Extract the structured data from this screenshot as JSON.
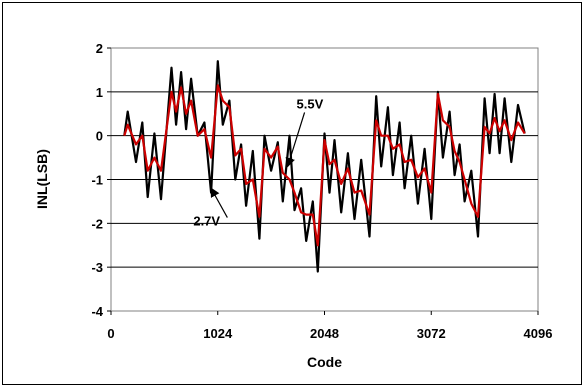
{
  "chart_data": {
    "type": "line",
    "xlabel": "Code",
    "ylabel": "INL(LSB)",
    "xlim": [
      0,
      4096
    ],
    "ylim": [
      -4,
      2
    ],
    "xticks": [
      0,
      1024,
      2048,
      3072,
      4096
    ],
    "yticks": [
      -4,
      -3,
      -2,
      -1,
      0,
      1,
      2
    ],
    "grid": "horizontal",
    "annotations": [
      {
        "text": "5.5V",
        "series": "5.5V",
        "point_x": 1695,
        "point_y": -0.7
      },
      {
        "text": "2.7V",
        "series": "2.7V",
        "point_x": 960,
        "point_y": -1.2
      }
    ],
    "series": [
      {
        "name": "2.7V",
        "color": "#000000",
        "points": [
          [
            128,
            0.0
          ],
          [
            160,
            0.55
          ],
          [
            240,
            -0.6
          ],
          [
            300,
            0.3
          ],
          [
            352,
            -1.4
          ],
          [
            416,
            0.05
          ],
          [
            480,
            -1.45
          ],
          [
            580,
            1.55
          ],
          [
            624,
            0.25
          ],
          [
            672,
            1.45
          ],
          [
            720,
            0.15
          ],
          [
            768,
            1.3
          ],
          [
            832,
            0.0
          ],
          [
            896,
            0.3
          ],
          [
            960,
            -1.3
          ],
          [
            1024,
            1.7
          ],
          [
            1072,
            0.25
          ],
          [
            1136,
            0.8
          ],
          [
            1192,
            -1.0
          ],
          [
            1248,
            -0.2
          ],
          [
            1296,
            -1.6
          ],
          [
            1360,
            -0.35
          ],
          [
            1424,
            -2.35
          ],
          [
            1472,
            0.0
          ],
          [
            1536,
            -0.8
          ],
          [
            1600,
            -0.15
          ],
          [
            1648,
            -1.5
          ],
          [
            1712,
            0.0
          ],
          [
            1760,
            -1.7
          ],
          [
            1824,
            -1.2
          ],
          [
            1872,
            -2.4
          ],
          [
            1936,
            -1.5
          ],
          [
            1984,
            -3.1
          ],
          [
            2048,
            0.05
          ],
          [
            2096,
            -1.3
          ],
          [
            2144,
            -0.1
          ],
          [
            2208,
            -1.75
          ],
          [
            2272,
            -0.4
          ],
          [
            2336,
            -1.9
          ],
          [
            2400,
            -0.55
          ],
          [
            2480,
            -2.3
          ],
          [
            2544,
            0.9
          ],
          [
            2592,
            -0.7
          ],
          [
            2656,
            0.65
          ],
          [
            2704,
            -0.9
          ],
          [
            2768,
            0.3
          ],
          [
            2816,
            -1.2
          ],
          [
            2880,
            0.0
          ],
          [
            2944,
            -1.55
          ],
          [
            3008,
            -0.3
          ],
          [
            3072,
            -1.9
          ],
          [
            3136,
            1.0
          ],
          [
            3184,
            -0.5
          ],
          [
            3248,
            0.55
          ],
          [
            3296,
            -0.9
          ],
          [
            3344,
            -0.2
          ],
          [
            3392,
            -1.5
          ],
          [
            3456,
            -0.8
          ],
          [
            3520,
            -2.3
          ],
          [
            3584,
            0.85
          ],
          [
            3632,
            -0.4
          ],
          [
            3680,
            0.95
          ],
          [
            3728,
            -0.4
          ],
          [
            3776,
            0.85
          ],
          [
            3840,
            -0.6
          ],
          [
            3904,
            0.7
          ],
          [
            3968,
            0.05
          ]
        ]
      },
      {
        "name": "5.5V",
        "color": "#cc0000",
        "points": [
          [
            128,
            0.0
          ],
          [
            160,
            0.25
          ],
          [
            240,
            -0.2
          ],
          [
            300,
            0.0
          ],
          [
            352,
            -0.8
          ],
          [
            416,
            -0.5
          ],
          [
            480,
            -0.8
          ],
          [
            580,
            1.0
          ],
          [
            624,
            0.55
          ],
          [
            672,
            1.1
          ],
          [
            720,
            0.5
          ],
          [
            768,
            0.8
          ],
          [
            832,
            0.0
          ],
          [
            896,
            0.15
          ],
          [
            960,
            -0.5
          ],
          [
            1024,
            1.15
          ],
          [
            1072,
            0.8
          ],
          [
            1136,
            0.65
          ],
          [
            1192,
            -0.45
          ],
          [
            1248,
            -0.3
          ],
          [
            1296,
            -1.1
          ],
          [
            1360,
            -1.0
          ],
          [
            1424,
            -1.85
          ],
          [
            1472,
            -0.3
          ],
          [
            1536,
            -0.5
          ],
          [
            1600,
            -0.25
          ],
          [
            1648,
            -0.85
          ],
          [
            1712,
            -1.0
          ],
          [
            1760,
            -1.3
          ],
          [
            1824,
            -1.75
          ],
          [
            1872,
            -1.8
          ],
          [
            1936,
            -1.8
          ],
          [
            1984,
            -2.5
          ],
          [
            2048,
            -0.1
          ],
          [
            2096,
            -0.65
          ],
          [
            2144,
            -0.55
          ],
          [
            2208,
            -1.1
          ],
          [
            2272,
            -0.75
          ],
          [
            2336,
            -1.3
          ],
          [
            2400,
            -1.25
          ],
          [
            2480,
            -1.8
          ],
          [
            2544,
            0.35
          ],
          [
            2592,
            0.0
          ],
          [
            2656,
            0.0
          ],
          [
            2704,
            -0.3
          ],
          [
            2768,
            -0.2
          ],
          [
            2816,
            -0.6
          ],
          [
            2880,
            -0.55
          ],
          [
            2944,
            -0.95
          ],
          [
            3008,
            -0.75
          ],
          [
            3072,
            -1.3
          ],
          [
            3136,
            0.95
          ],
          [
            3184,
            0.35
          ],
          [
            3248,
            0.2
          ],
          [
            3296,
            -0.35
          ],
          [
            3344,
            -0.6
          ],
          [
            3392,
            -1.0
          ],
          [
            3456,
            -1.55
          ],
          [
            3520,
            -1.85
          ],
          [
            3584,
            0.2
          ],
          [
            3632,
            0.05
          ],
          [
            3680,
            0.4
          ],
          [
            3728,
            0.1
          ],
          [
            3776,
            0.35
          ],
          [
            3840,
            -0.1
          ],
          [
            3904,
            0.3
          ],
          [
            3968,
            0.05
          ]
        ]
      }
    ]
  }
}
